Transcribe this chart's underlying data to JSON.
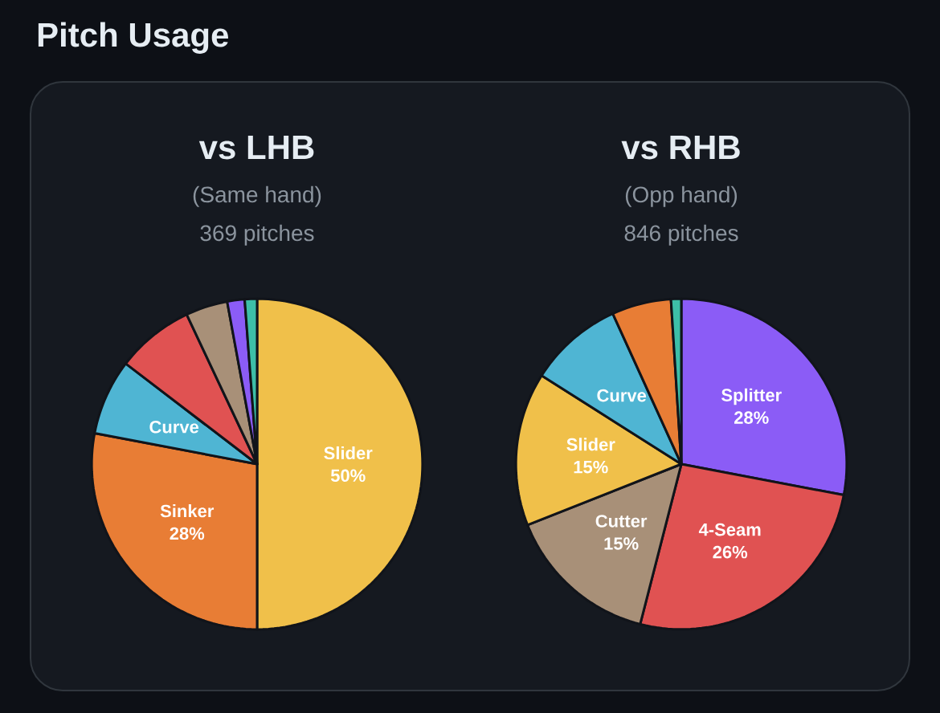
{
  "chart_data": [
    {
      "type": "pie",
      "title": "vs LHB",
      "subtitle": "(Same hand)",
      "annotations": [
        "369 pitches",
        "Pitch Usage"
      ],
      "categories": [
        "Slider",
        "Sinker",
        "Curve",
        null,
        null,
        null,
        null
      ],
      "values": [
        50,
        28,
        7.4,
        7.6,
        4.1,
        1.7,
        1.2
      ],
      "value_labels": [
        "50%",
        "28%",
        null,
        null,
        null,
        null,
        null
      ],
      "colors": [
        "#f0c04a",
        "#e87d35",
        "#4fb5d3",
        "#e05252",
        "#a89078",
        "#8b5cf6",
        "#3dbfa8"
      ]
    },
    {
      "type": "pie",
      "title": "vs RHB",
      "subtitle": "(Opp hand)",
      "annotations": [
        "846 pitches"
      ],
      "categories": [
        "Splitter",
        "4-Seam",
        "Cutter",
        "Slider",
        "Curve",
        null,
        null
      ],
      "values": [
        28,
        26,
        15,
        15,
        9.2,
        5.8,
        1.0
      ],
      "value_labels": [
        "28%",
        "26%",
        "15%",
        "15%",
        null,
        null,
        null
      ],
      "colors": [
        "#8b5cf6",
        "#e05252",
        "#a89078",
        "#f0c04a",
        "#4fb5d3",
        "#e87d35",
        "#3dbfa8"
      ]
    }
  ]
}
